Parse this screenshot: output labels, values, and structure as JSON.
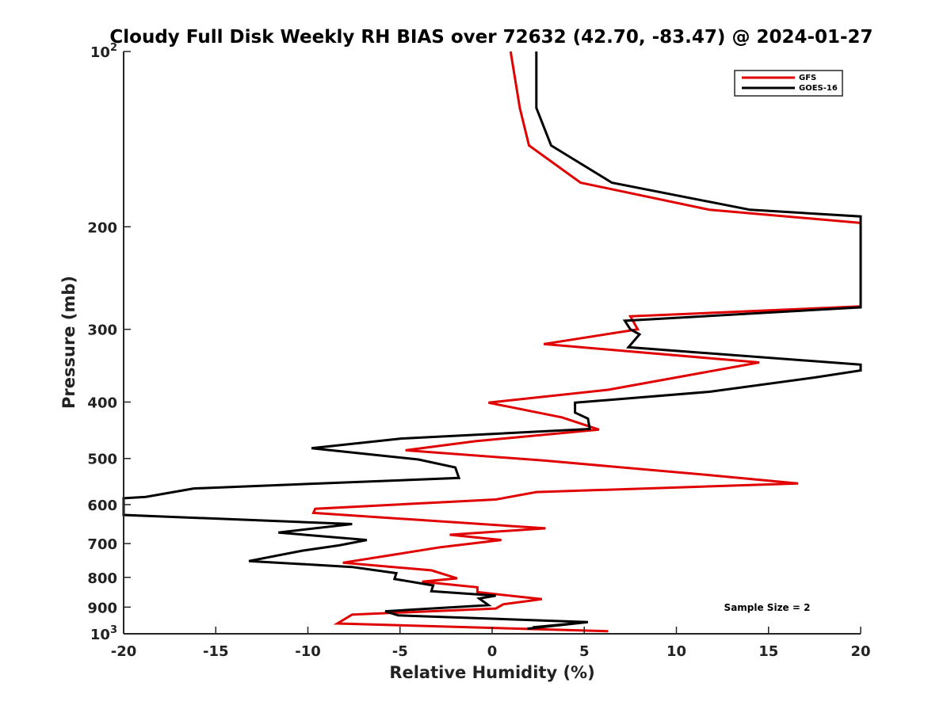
{
  "chart_data": {
    "type": "line",
    "title": "Cloudy Full Disk Weekly RH BIAS over 72632 (42.70, -83.47) @ 2024-01-27",
    "xlabel": "Relative Humidity (%)",
    "ylabel": "Pressure (mb)",
    "xlim": [
      -20,
      20
    ],
    "ylim": [
      100,
      1000
    ],
    "yscale": "log",
    "y_reversed": true,
    "grid": false,
    "legend_position": "top-right",
    "x_ticks": [
      {
        "value": -20,
        "label": "-20"
      },
      {
        "value": -15,
        "label": "-15"
      },
      {
        "value": -10,
        "label": "-10"
      },
      {
        "value": -5,
        "label": "-5"
      },
      {
        "value": 0,
        "label": "0"
      },
      {
        "value": 5,
        "label": "5"
      },
      {
        "value": 10,
        "label": "10"
      },
      {
        "value": 15,
        "label": "15"
      },
      {
        "value": 20,
        "label": "20"
      }
    ],
    "y_ticks": [
      {
        "value": 100,
        "base": "10",
        "exp": "2"
      },
      {
        "value": 200,
        "base": "200",
        "exp": ""
      },
      {
        "value": 300,
        "base": "300",
        "exp": ""
      },
      {
        "value": 400,
        "base": "400",
        "exp": ""
      },
      {
        "value": 500,
        "base": "500",
        "exp": ""
      },
      {
        "value": 600,
        "base": "600",
        "exp": ""
      },
      {
        "value": 700,
        "base": "700",
        "exp": ""
      },
      {
        "value": 800,
        "base": "800",
        "exp": ""
      },
      {
        "value": 900,
        "base": "900",
        "exp": ""
      },
      {
        "value": 1000,
        "base": "10",
        "exp": "3"
      }
    ],
    "annotation": "Sample Size = 2",
    "series": [
      {
        "name": "GFS",
        "color": "#e00000",
        "points": [
          [
            1.0,
            100
          ],
          [
            1.5,
            125
          ],
          [
            2.0,
            145
          ],
          [
            4.8,
            168
          ],
          [
            11.8,
            187
          ],
          [
            20.0,
            197
          ],
          [
            20.0,
            274
          ],
          [
            7.5,
            285
          ],
          [
            7.9,
            300
          ],
          [
            2.8,
            318
          ],
          [
            14.5,
            342
          ],
          [
            6.3,
            381
          ],
          [
            -0.2,
            401
          ],
          [
            3.8,
            425
          ],
          [
            5.8,
            446
          ],
          [
            -0.9,
            467
          ],
          [
            -4.7,
            484
          ],
          [
            2.8,
            504
          ],
          [
            11.8,
            534
          ],
          [
            16.6,
            552
          ],
          [
            2.4,
            571
          ],
          [
            0.2,
            588
          ],
          [
            -9.6,
            610
          ],
          [
            -9.7,
            620
          ],
          [
            2.9,
            659
          ],
          [
            -2.3,
            676
          ],
          [
            0.5,
            690
          ],
          [
            -2.8,
            710
          ],
          [
            -5.3,
            731
          ],
          [
            -8.1,
            755
          ],
          [
            -3.3,
            778
          ],
          [
            -1.9,
            803
          ],
          [
            -3.8,
            814
          ],
          [
            -0.8,
            832
          ],
          [
            -0.8,
            848
          ],
          [
            2.7,
            872
          ],
          [
            0.6,
            890
          ],
          [
            0.2,
            905
          ],
          [
            -7.6,
            927
          ],
          [
            -8.4,
            960
          ],
          [
            6.3,
            990
          ]
        ]
      },
      {
        "name": "GOES-16",
        "color": "#000000",
        "points": [
          [
            2.4,
            100
          ],
          [
            2.4,
            125
          ],
          [
            3.2,
            145
          ],
          [
            6.5,
            168
          ],
          [
            14.0,
            187
          ],
          [
            20.0,
            192
          ],
          [
            20.0,
            275
          ],
          [
            7.2,
            290
          ],
          [
            7.5,
            300
          ],
          [
            8.0,
            306
          ],
          [
            7.4,
            322
          ],
          [
            20.0,
            345
          ],
          [
            20.0,
            353
          ],
          [
            17.5,
            363
          ],
          [
            11.8,
            384
          ],
          [
            4.5,
            401
          ],
          [
            4.5,
            417
          ],
          [
            5.2,
            427
          ],
          [
            5.3,
            445
          ],
          [
            -4.9,
            462
          ],
          [
            -9.8,
            480
          ],
          [
            -4.0,
            502
          ],
          [
            -2.0,
            518
          ],
          [
            -1.8,
            540
          ],
          [
            -16.2,
            563
          ],
          [
            -18.8,
            582
          ],
          [
            -20.0,
            585
          ],
          [
            -20.0,
            625
          ],
          [
            -7.6,
            648
          ],
          [
            -11.6,
            670
          ],
          [
            -6.8,
            690
          ],
          [
            -8.3,
            705
          ],
          [
            -10.3,
            720
          ],
          [
            -13.2,
            750
          ],
          [
            -7.6,
            768
          ],
          [
            -5.2,
            787
          ],
          [
            -5.3,
            805
          ],
          [
            -3.2,
            826
          ],
          [
            -3.3,
            845
          ],
          [
            0.2,
            860
          ],
          [
            -0.7,
            870
          ],
          [
            -0.2,
            893
          ],
          [
            -5.8,
            915
          ],
          [
            -5.1,
            930
          ],
          [
            5.2,
            955
          ],
          [
            2.2,
            975
          ],
          [
            5.2,
            955
          ],
          [
            1.9,
            980
          ]
        ]
      }
    ]
  }
}
